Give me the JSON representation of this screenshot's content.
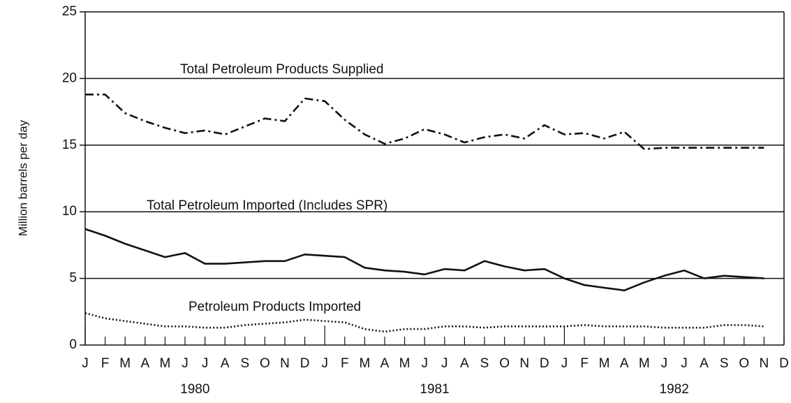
{
  "chart_data": {
    "type": "line",
    "ylabel": "Million barrels per day",
    "categories": [
      "J",
      "F",
      "M",
      "A",
      "M",
      "J",
      "J",
      "A",
      "S",
      "O",
      "N",
      "D",
      "J",
      "F",
      "M",
      "A",
      "M",
      "J",
      "J",
      "A",
      "S",
      "O",
      "N",
      "D",
      "J",
      "F",
      "M",
      "A",
      "M",
      "J",
      "J",
      "A",
      "S",
      "O",
      "N",
      "D"
    ],
    "year_labels": [
      "1980",
      "1981",
      "1982"
    ],
    "series": [
      {
        "name": "Total Petroleum Products Supplied",
        "color": "#111111",
        "style": "dash-dot",
        "values": [
          18.8,
          18.8,
          17.4,
          16.8,
          16.3,
          15.9,
          16.1,
          15.8,
          16.4,
          17.0,
          16.8,
          18.5,
          18.3,
          16.9,
          15.8,
          15.1,
          15.5,
          16.2,
          15.8,
          15.2,
          15.6,
          15.8,
          15.5,
          16.5,
          15.8,
          15.9,
          15.5,
          16.0,
          14.7,
          14.8,
          14.8,
          14.8,
          14.8,
          14.8,
          14.8,
          null
        ]
      },
      {
        "name": "Total Petroleum Imported (Includes SPR)",
        "color": "#111111",
        "style": "solid",
        "values": [
          8.7,
          8.2,
          7.6,
          7.1,
          6.6,
          6.9,
          6.1,
          6.1,
          6.2,
          6.3,
          6.3,
          6.8,
          6.7,
          6.6,
          5.8,
          5.6,
          5.5,
          5.3,
          5.7,
          5.6,
          6.3,
          5.9,
          5.6,
          5.7,
          5.0,
          4.5,
          4.3,
          4.1,
          4.7,
          5.2,
          5.6,
          5.0,
          5.2,
          5.1,
          5.0,
          null
        ]
      },
      {
        "name": "Petroleum Products Imported",
        "color": "#111111",
        "style": "dotted",
        "values": [
          2.4,
          2.0,
          1.8,
          1.6,
          1.4,
          1.4,
          1.3,
          1.3,
          1.5,
          1.6,
          1.7,
          1.9,
          1.8,
          1.7,
          1.2,
          1.0,
          1.2,
          1.2,
          1.4,
          1.4,
          1.3,
          1.4,
          1.4,
          1.4,
          1.4,
          1.5,
          1.4,
          1.4,
          1.4,
          1.3,
          1.3,
          1.3,
          1.5,
          1.5,
          1.4,
          null
        ]
      }
    ],
    "ylim": [
      0,
      25
    ],
    "yticks": [
      0,
      5,
      10,
      15,
      20,
      25
    ],
    "grid": true
  }
}
